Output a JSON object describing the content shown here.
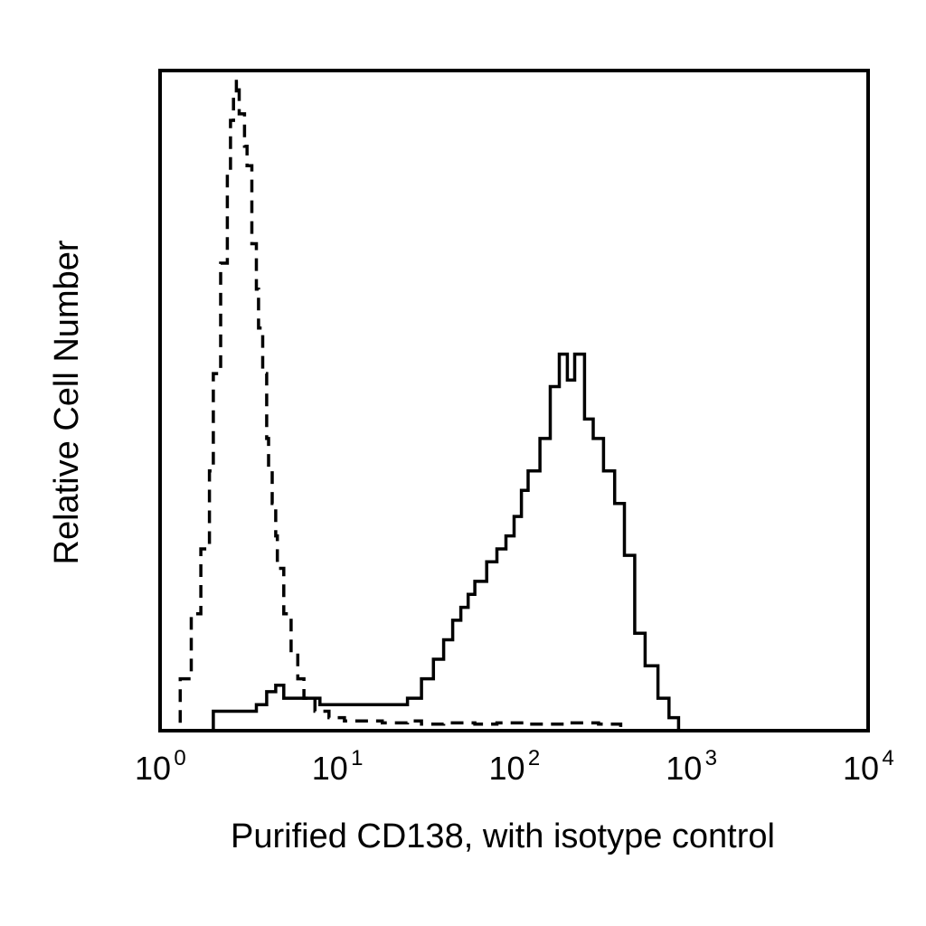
{
  "chart_data": {
    "type": "area",
    "title": "",
    "xlabel": "Purified CD138, with isotype control",
    "ylabel": "Relative Cell Number",
    "x_scale": "log",
    "xlim": [
      1,
      10000
    ],
    "ylim": [
      0,
      100
    ],
    "grid": false,
    "y_ticks_shown": false,
    "x_ticks": [
      {
        "base": "10",
        "exp": "0"
      },
      {
        "base": "10",
        "exp": "1"
      },
      {
        "base": "10",
        "exp": "2"
      },
      {
        "base": "10",
        "exp": "3"
      },
      {
        "base": "10",
        "exp": "4"
      }
    ],
    "series": [
      {
        "style": "dashed",
        "x": [
          1.1,
          1.3,
          1.5,
          1.7,
          1.9,
          2.0,
          2.2,
          2.4,
          2.5,
          2.6,
          2.7,
          2.8,
          3.0,
          3.1,
          3.3,
          3.5,
          3.6,
          3.8,
          4.0,
          4.1,
          4.3,
          4.5,
          4.6,
          5.0,
          5.5,
          6.0,
          6.5,
          7.5,
          9.0,
          11,
          14,
          18,
          25,
          30,
          40,
          60,
          80,
          120,
          150,
          200,
          300,
          400
        ],
        "y": [
          0,
          8,
          18,
          28,
          40,
          55,
          72,
          86,
          94,
          98,
          100,
          95,
          90,
          87,
          75,
          68,
          62,
          55,
          45,
          40,
          35,
          30,
          25,
          18,
          12,
          8,
          5,
          3,
          2,
          1.5,
          1.5,
          1.2,
          1.5,
          1,
          1.2,
          1,
          1.2,
          1,
          1,
          1.2,
          1,
          0
        ]
      },
      {
        "style": "solid",
        "x": [
          1.5,
          2.0,
          2.5,
          3.0,
          3.5,
          4.0,
          4.5,
          5.0,
          6.0,
          7.0,
          8.0,
          10,
          13,
          18,
          25,
          30,
          35,
          40,
          45,
          50,
          55,
          60,
          70,
          80,
          90,
          100,
          110,
          120,
          140,
          160,
          180,
          200,
          220,
          250,
          280,
          320,
          370,
          420,
          480,
          550,
          650,
          750,
          850
        ],
        "y": [
          0,
          3,
          3,
          3,
          4,
          6,
          7,
          5,
          5,
          5,
          4,
          4,
          4,
          4,
          5,
          8,
          11,
          14,
          17,
          19,
          21,
          23,
          26,
          28,
          30,
          33,
          37,
          40,
          45,
          53,
          58,
          54,
          58,
          48,
          45,
          40,
          35,
          27,
          15,
          10,
          5,
          2,
          0
        ]
      }
    ]
  }
}
